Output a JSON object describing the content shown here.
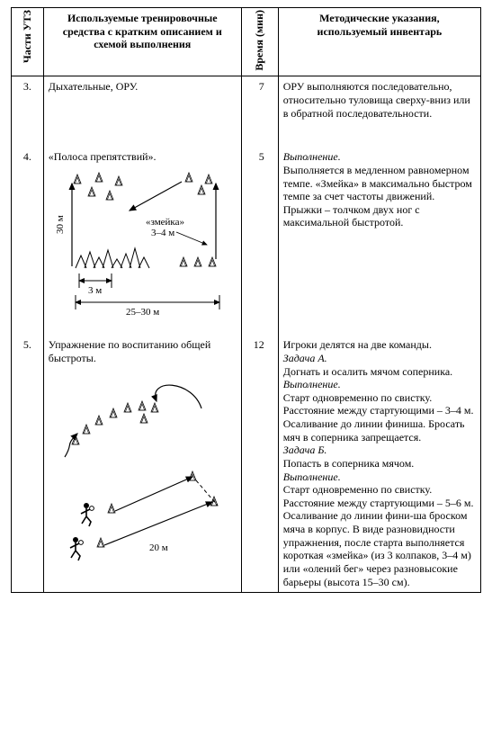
{
  "header": {
    "col1": "Части\nУТЗ",
    "col2": "Используемые тренировочные средства с кратким описанием и схемой выполнения",
    "col3": "Время\n(мин)",
    "col4": "Методические указания, используемый инвентарь"
  },
  "rows": [
    {
      "n": "3.",
      "means": "Дыхательные, ОРУ.",
      "time": "7",
      "notes": "ОРУ выполняются последовательно, относительно туловища сверху-вниз или в обратной последовательности."
    },
    {
      "n": "4.",
      "means": "«Полоса препятствий».",
      "time": "5",
      "notes_html": "<span class='it'>Выполнение.</span><br>Выполняется в медленном равномерном темпе. «Змейка» в максимально быстром темпе за счет частоты движений.<br>Прыжки – толчком двух ног с максимальной быстротой."
    },
    {
      "n": "5.",
      "means": "Упражнение по воспитанию общей быстроты.",
      "time": "12",
      "notes_html": "Игроки делятся на две команды.<br><span class='it'>Задача А.</span><br>Догнать и осалить мячом соперника.<br><span class='it'>Выполнение.</span><br>Старт одновременно по свистку. Расстояние между стартующими – 3–4 м. Осаливание до линии финиша. Бросать мяч в соперника запрещается.<br><span class='it'>Задача Б.</span><br>Попасть в соперника мячом.<br><span class='it'>Выполнение.</span><br>Старт одновременно по свистку. Расстояние между стартующими – 5–6 м. Осаливание до линии фини-ша броском мяча в корпус. В виде разновидности упражнения, после старта выполняется короткая «змейка» (из 3 колпаков, 3–4 м) или «олений бег» через разновысокие барьеры (высота 15–30 см)."
    }
  ],
  "dia1": {
    "title_snake": "«змейка»",
    "dist_snake": "3–4 м",
    "h": "30 м",
    "w1": "3 м",
    "w2": "25–30 м"
  },
  "dia2": {
    "dist": "20 м"
  }
}
